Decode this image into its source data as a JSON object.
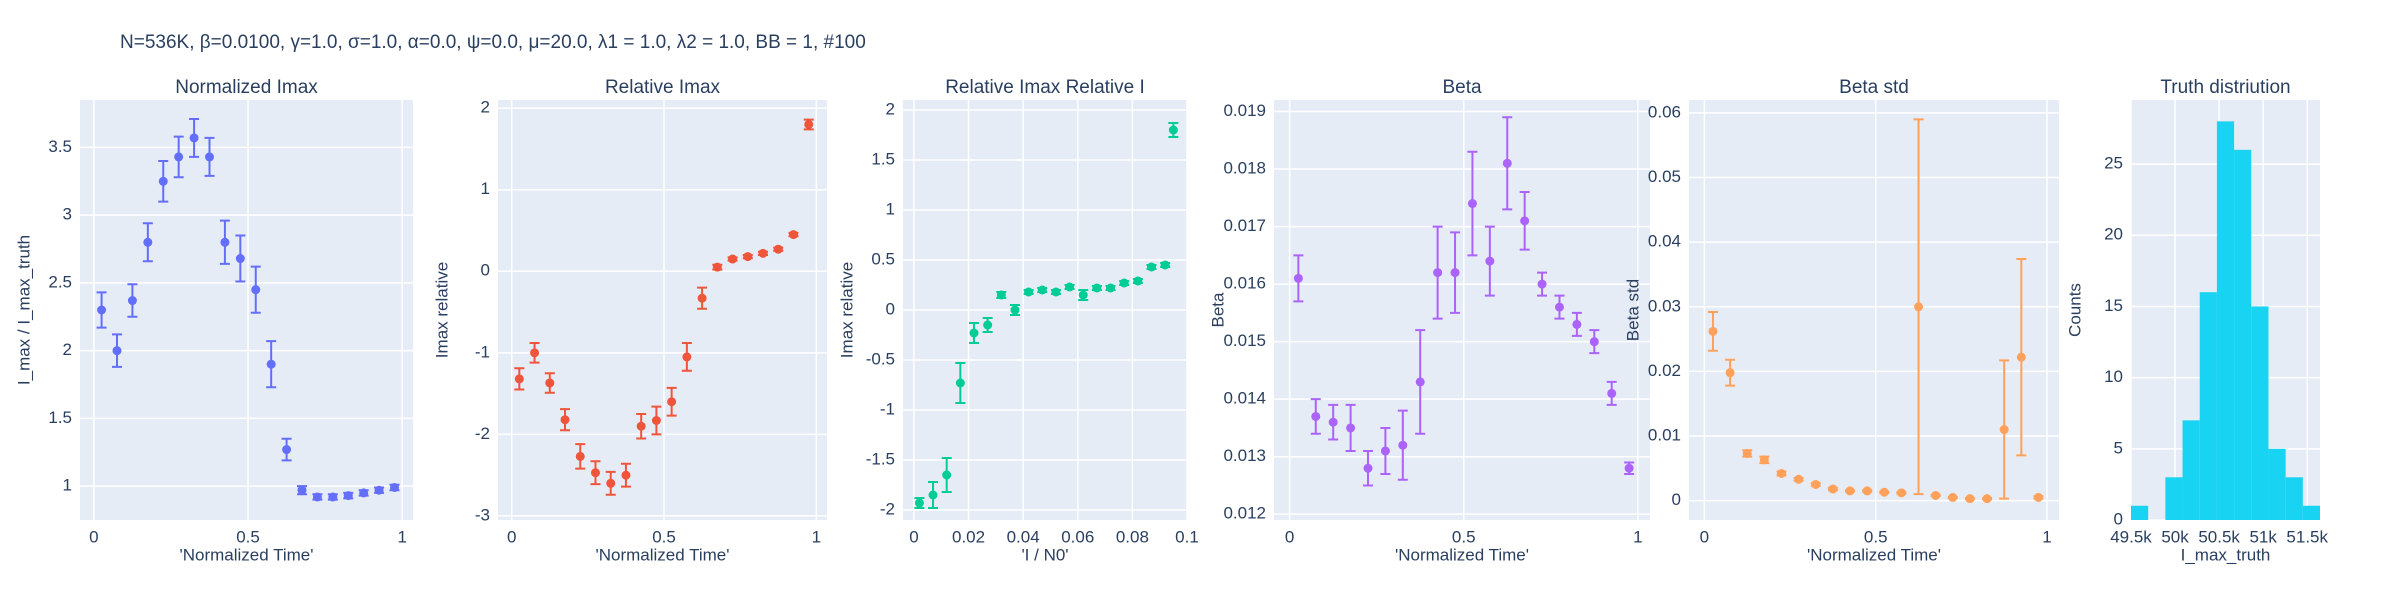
{
  "title": "N=536K, β=0.0100, γ=1.0, σ=1.0,  α=0.0, ψ=0.0, μ=20.0, λ1 = 1.0, λ2 = 1.0, BB = 1, #100",
  "chart_data": [
    {
      "type": "scatter",
      "title": "Normalized Imax",
      "x_label": "'Normalized Time'",
      "y_label": "I_max / I_max_truth",
      "color": "#636efa",
      "x": [
        0.025,
        0.075,
        0.125,
        0.175,
        0.225,
        0.275,
        0.325,
        0.375,
        0.425,
        0.475,
        0.525,
        0.575,
        0.625,
        0.675,
        0.725,
        0.775,
        0.825,
        0.875,
        0.925,
        0.975
      ],
      "values": [
        2.3,
        2.0,
        2.37,
        2.8,
        3.25,
        3.43,
        3.57,
        3.43,
        2.8,
        2.68,
        2.45,
        1.9,
        1.27,
        0.97,
        0.92,
        0.92,
        0.93,
        0.95,
        0.97,
        0.99
      ],
      "errors": [
        0.13,
        0.12,
        0.12,
        0.14,
        0.15,
        0.15,
        0.14,
        0.14,
        0.16,
        0.17,
        0.17,
        0.17,
        0.08,
        0.03,
        0.02,
        0.02,
        0.02,
        0.02,
        0.02,
        0.02
      ],
      "xlim": [
        -0.045,
        1.035
      ],
      "xticks": [
        0,
        0.5,
        1
      ],
      "ylim": [
        0.75,
        3.85
      ],
      "yticks": [
        1,
        1.5,
        2,
        2.5,
        3,
        3.5
      ],
      "grid": true
    },
    {
      "type": "scatter",
      "title": "Relative Imax",
      "x_label": "'Normalized Time'",
      "y_label": "Imax relative",
      "color": "#EF553B",
      "x": [
        0.025,
        0.075,
        0.125,
        0.175,
        0.225,
        0.275,
        0.325,
        0.375,
        0.425,
        0.475,
        0.525,
        0.575,
        0.625,
        0.675,
        0.725,
        0.775,
        0.825,
        0.875,
        0.925,
        0.975
      ],
      "values": [
        -1.32,
        -1.0,
        -1.37,
        -1.82,
        -2.27,
        -2.47,
        -2.6,
        -2.5,
        -1.9,
        -1.83,
        -1.6,
        -1.05,
        -0.33,
        0.05,
        0.15,
        0.18,
        0.22,
        0.27,
        0.45,
        1.8
      ],
      "errors": [
        0.13,
        0.12,
        0.12,
        0.13,
        0.15,
        0.14,
        0.14,
        0.14,
        0.15,
        0.17,
        0.17,
        0.17,
        0.13,
        0.03,
        0.02,
        0.02,
        0.02,
        0.02,
        0.02,
        0.06
      ],
      "xlim": [
        -0.045,
        1.035
      ],
      "xticks": [
        0,
        0.5,
        1
      ],
      "ylim": [
        -3.05,
        2.1
      ],
      "yticks": [
        -3,
        -2,
        -1,
        0,
        1,
        2
      ],
      "grid": true
    },
    {
      "type": "scatter",
      "title": "Relative Imax Relative I",
      "x_label": "'I / N0'",
      "y_label": "Imax relative",
      "color": "#00cc96",
      "x": [
        0.002,
        0.007,
        0.012,
        0.017,
        0.022,
        0.027,
        0.032,
        0.037,
        0.042,
        0.047,
        0.052,
        0.057,
        0.062,
        0.067,
        0.072,
        0.077,
        0.082,
        0.087,
        0.092,
        0.095
      ],
      "values": [
        -1.93,
        -1.85,
        -1.65,
        -0.73,
        -0.23,
        -0.15,
        0.15,
        0.0,
        0.18,
        0.2,
        0.18,
        0.23,
        0.15,
        0.22,
        0.22,
        0.27,
        0.29,
        0.43,
        0.45,
        1.8
      ],
      "errors": [
        0.05,
        0.13,
        0.17,
        0.2,
        0.1,
        0.07,
        0.03,
        0.05,
        0.02,
        0.02,
        0.02,
        0.02,
        0.05,
        0.02,
        0.02,
        0.02,
        0.02,
        0.02,
        0.02,
        0.07
      ],
      "xlim": [
        -0.004,
        0.1
      ],
      "xticks": [
        0,
        0.02,
        0.04,
        0.06,
        0.08,
        0.1
      ],
      "ylim": [
        -2.1,
        2.1
      ],
      "yticks": [
        -2,
        -1.5,
        -1,
        -0.5,
        0,
        0.5,
        1,
        1.5,
        2
      ],
      "grid": true
    },
    {
      "type": "scatter",
      "title": "Beta",
      "x_label": "'Normalized Time'",
      "y_label": "Beta",
      "color": "#ab63fa",
      "x": [
        0.025,
        0.075,
        0.125,
        0.175,
        0.225,
        0.275,
        0.325,
        0.375,
        0.425,
        0.475,
        0.525,
        0.575,
        0.625,
        0.675,
        0.725,
        0.775,
        0.825,
        0.875,
        0.925,
        0.975
      ],
      "values": [
        0.0161,
        0.0137,
        0.0136,
        0.0135,
        0.0128,
        0.0131,
        0.0132,
        0.0143,
        0.0162,
        0.0162,
        0.0174,
        0.0164,
        0.0181,
        0.0171,
        0.016,
        0.0156,
        0.0153,
        0.015,
        0.0141,
        0.0128
      ],
      "errors": [
        0.0004,
        0.0003,
        0.0003,
        0.0004,
        0.0003,
        0.0004,
        0.0006,
        0.0009,
        0.0008,
        0.0007,
        0.0009,
        0.0006,
        0.0008,
        0.0005,
        0.0002,
        0.0002,
        0.0002,
        0.0002,
        0.0002,
        0.0001
      ],
      "xlim": [
        -0.045,
        1.035
      ],
      "xticks": [
        0,
        0.5,
        1
      ],
      "ylim": [
        0.0119,
        0.0192
      ],
      "yticks": [
        0.012,
        0.013,
        0.014,
        0.015,
        0.016,
        0.017,
        0.018,
        0.019
      ],
      "grid": true
    },
    {
      "type": "scatter",
      "title": "Beta std",
      "x_label": "'Normalized Time'",
      "y_label": "Beta std",
      "color": "#FFA15A",
      "x": [
        0.025,
        0.075,
        0.125,
        0.175,
        0.225,
        0.275,
        0.325,
        0.375,
        0.425,
        0.475,
        0.525,
        0.575,
        0.625,
        0.675,
        0.725,
        0.775,
        0.825,
        0.875,
        0.925,
        0.975
      ],
      "values": [
        0.0262,
        0.0198,
        0.0073,
        0.0063,
        0.0042,
        0.0033,
        0.0025,
        0.0018,
        0.0015,
        0.0015,
        0.0013,
        0.0012,
        0.03,
        0.0008,
        0.0005,
        0.0003,
        0.0003,
        0.011,
        0.0222,
        0.0005
      ],
      "errors": [
        0.003,
        0.002,
        0.0005,
        0.0005,
        0.0003,
        0.0002,
        0.0002,
        0.0002,
        0.0001,
        0.0001,
        0.0001,
        0.0001,
        0.029,
        0.0001,
        0.0001,
        0.0001,
        0.0001,
        0.0107,
        0.0152,
        0.0002
      ],
      "xlim": [
        -0.045,
        1.035
      ],
      "xticks": [
        0,
        0.5,
        1
      ],
      "ylim": [
        -0.003,
        0.062
      ],
      "yticks": [
        0,
        0.01,
        0.02,
        0.03,
        0.04,
        0.05,
        0.06
      ],
      "grid": true
    },
    {
      "type": "histogram",
      "title": "Truth distriution",
      "x_label": "I_max_truth",
      "y_label": "Counts",
      "color": "#19d3f3",
      "bins": [
        49500,
        49695,
        49890,
        50085,
        50280,
        50475,
        50670,
        50865,
        51060,
        51255,
        51450,
        51645
      ],
      "counts": [
        1,
        0,
        3,
        7,
        16,
        28,
        26,
        15,
        5,
        3,
        1
      ],
      "xlim": [
        49500,
        51645
      ],
      "xticks": [
        {
          "value": 49500,
          "label": "49.5k"
        },
        {
          "value": 50000,
          "label": "50k"
        },
        {
          "value": 50500,
          "label": "50.5k"
        },
        {
          "value": 51000,
          "label": "51k"
        },
        {
          "value": 51500,
          "label": "51.5k"
        }
      ],
      "ylim": [
        0,
        29.5
      ],
      "yticks": [
        0,
        5,
        10,
        15,
        20,
        25
      ],
      "grid": true
    }
  ]
}
